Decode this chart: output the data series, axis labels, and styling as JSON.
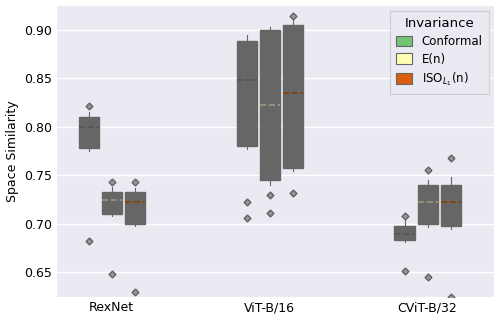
{
  "ylabel": "Space Similarity",
  "background_color": "#eaeaf2",
  "fig_background": "#ffffff",
  "ylim": [
    0.625,
    0.925
  ],
  "yticks": [
    0.65,
    0.7,
    0.75,
    0.8,
    0.85,
    0.9
  ],
  "groups": [
    "RexNet",
    "ViT-B/16",
    "CViT-B/32"
  ],
  "invariances": [
    "Conformal",
    "E(n)",
    "ISO_L1(n)"
  ],
  "colors": [
    "#74c476",
    "#ffffb3",
    "#d95f0e"
  ],
  "edge_colors": [
    "#4a8c4a",
    "#aaaaaa",
    "#8c3a00"
  ],
  "median_linestyle": "--",
  "legend_title": "Invariance",
  "group_positions": [
    1.0,
    2.3,
    3.6
  ],
  "offsets": [
    -0.19,
    0.0,
    0.19
  ],
  "box_width": 0.165,
  "boxes": {
    "RexNet": {
      "Conformal": {
        "q1": 0.778,
        "median": 0.8,
        "q3": 0.81,
        "whislo": 0.775,
        "whishi": 0.815,
        "fliers": [
          0.821,
          0.682
        ]
      },
      "E(n)": {
        "q1": 0.71,
        "median": 0.725,
        "q3": 0.733,
        "whislo": 0.708,
        "whishi": 0.738,
        "fliers": [
          0.648,
          0.743
        ]
      },
      "ISO_L1(n)": {
        "q1": 0.7,
        "median": 0.723,
        "q3": 0.733,
        "whislo": 0.698,
        "whishi": 0.737,
        "fliers": [
          0.743,
          0.63
        ]
      }
    },
    "ViT-B/16": {
      "Conformal": {
        "q1": 0.78,
        "median": 0.848,
        "q3": 0.888,
        "whislo": 0.777,
        "whishi": 0.895,
        "fliers": [
          0.706,
          0.722
        ]
      },
      "E(n)": {
        "q1": 0.745,
        "median": 0.822,
        "q3": 0.9,
        "whislo": 0.74,
        "whishi": 0.903,
        "fliers": [
          0.711,
          0.73
        ]
      },
      "ISO_L1(n)": {
        "q1": 0.758,
        "median": 0.835,
        "q3": 0.905,
        "whislo": 0.754,
        "whishi": 0.91,
        "fliers": [
          0.914,
          0.732
        ]
      }
    },
    "CViT-B/32": {
      "Conformal": {
        "q1": 0.683,
        "median": 0.69,
        "q3": 0.698,
        "whislo": 0.681,
        "whishi": 0.704,
        "fliers": [
          0.708,
          0.651
        ]
      },
      "E(n)": {
        "q1": 0.7,
        "median": 0.722,
        "q3": 0.74,
        "whislo": 0.697,
        "whishi": 0.745,
        "fliers": [
          0.756,
          0.645
        ]
      },
      "ISO_L1(n)": {
        "q1": 0.698,
        "median": 0.723,
        "q3": 0.74,
        "whislo": 0.695,
        "whishi": 0.748,
        "fliers": [
          0.768,
          0.625
        ]
      }
    }
  }
}
